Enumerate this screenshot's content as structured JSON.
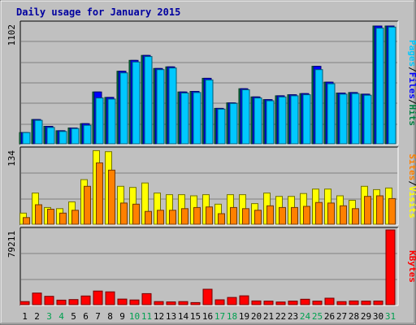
{
  "chart_data": [
    {
      "type": "bar",
      "title": "Daily usage for January 2015",
      "ymax_label": "1102",
      "ylim": [
        0,
        1102
      ],
      "right_label": [
        {
          "text": "Pages",
          "color": "#00c8ff"
        },
        {
          "text": "/",
          "color": "#000000"
        },
        {
          "text": "Files",
          "color": "#0000ff"
        },
        {
          "text": "/",
          "color": "#000000"
        },
        {
          "text": "Hits",
          "color": "#008040"
        }
      ],
      "categories": [
        "1",
        "2",
        "3",
        "4",
        "5",
        "6",
        "7",
        "8",
        "9",
        "10",
        "11",
        "12",
        "13",
        "14",
        "15",
        "16",
        "17",
        "18",
        "19",
        "20",
        "21",
        "22",
        "23",
        "24",
        "25",
        "26",
        "27",
        "28",
        "29",
        "30",
        "31"
      ],
      "weekend_days": [
        "3",
        "4",
        "10",
        "11",
        "17",
        "18",
        "24",
        "25",
        "31"
      ],
      "series": [
        {
          "name": "Hits",
          "color": "#008040",
          "values": [
            103,
            223,
            160,
            120,
            145,
            185,
            475,
            425,
            665,
            765,
            810,
            690,
            705,
            475,
            480,
            600,
            325,
            375,
            505,
            430,
            405,
            440,
            450,
            460,
            710,
            565,
            465,
            470,
            455,
            1080,
            1080
          ]
        },
        {
          "name": "Files",
          "color": "#0000ff",
          "values": [
            103,
            223,
            160,
            120,
            145,
            185,
            475,
            425,
            665,
            765,
            810,
            690,
            705,
            475,
            480,
            600,
            325,
            375,
            505,
            430,
            405,
            440,
            450,
            460,
            710,
            565,
            465,
            470,
            455,
            1080,
            1080
          ]
        },
        {
          "name": "Pages",
          "color": "#00c8ff",
          "values": [
            103,
            215,
            150,
            113,
            140,
            170,
            420,
            410,
            650,
            750,
            800,
            680,
            695,
            465,
            470,
            585,
            318,
            370,
            495,
            420,
            395,
            430,
            440,
            450,
            680,
            550,
            455,
            460,
            445,
            1060,
            1070
          ]
        }
      ]
    },
    {
      "type": "bar",
      "ymax_label": "134",
      "ylim": [
        0,
        134
      ],
      "right_label": [
        {
          "text": "Sites",
          "color": "#ff8000"
        },
        {
          "text": "/",
          "color": "#000000"
        },
        {
          "text": "Visits",
          "color": "#ffff00"
        }
      ],
      "categories": [
        "1",
        "2",
        "3",
        "4",
        "5",
        "6",
        "7",
        "8",
        "9",
        "10",
        "11",
        "12",
        "13",
        "14",
        "15",
        "16",
        "17",
        "18",
        "19",
        "20",
        "21",
        "22",
        "23",
        "24",
        "25",
        "26",
        "27",
        "28",
        "29",
        "30",
        "31"
      ],
      "series": [
        {
          "name": "Visits",
          "color": "#ffff00",
          "values": [
            20,
            56,
            30,
            28,
            40,
            80,
            132,
            130,
            68,
            66,
            74,
            56,
            53,
            53,
            51,
            53,
            36,
            53,
            53,
            37,
            56,
            50,
            50,
            55,
            63,
            63,
            51,
            43,
            68,
            62,
            65
          ]
        },
        {
          "name": "Sites",
          "color": "#ff8000",
          "values": [
            12,
            35,
            27,
            20,
            25,
            68,
            110,
            97,
            38,
            36,
            23,
            25,
            25,
            28,
            30,
            31,
            19,
            30,
            28,
            25,
            33,
            30,
            30,
            32,
            39,
            38,
            33,
            28,
            50,
            51,
            46
          ]
        }
      ]
    },
    {
      "type": "bar",
      "ymax_label": "79211",
      "ylim": [
        0,
        79211
      ],
      "right_label": [
        {
          "text": "KBytes",
          "color": "#ff0000"
        }
      ],
      "categories": [
        "1",
        "2",
        "3",
        "4",
        "5",
        "6",
        "7",
        "8",
        "9",
        "10",
        "11",
        "12",
        "13",
        "14",
        "15",
        "16",
        "17",
        "18",
        "19",
        "20",
        "21",
        "22",
        "23",
        "24",
        "25",
        "26",
        "27",
        "28",
        "29",
        "30",
        "31"
      ],
      "series": [
        {
          "name": "KBytes",
          "color": "#ff0000",
          "values": [
            3300,
            12300,
            8900,
            4800,
            5400,
            9200,
            14500,
            13600,
            5900,
            5000,
            11700,
            3300,
            2900,
            3300,
            2200,
            16400,
            5200,
            7700,
            9400,
            4000,
            3800,
            2800,
            3800,
            5800,
            3800,
            6900,
            3300,
            4000,
            3800,
            3900,
            79211
          ]
        }
      ]
    }
  ]
}
